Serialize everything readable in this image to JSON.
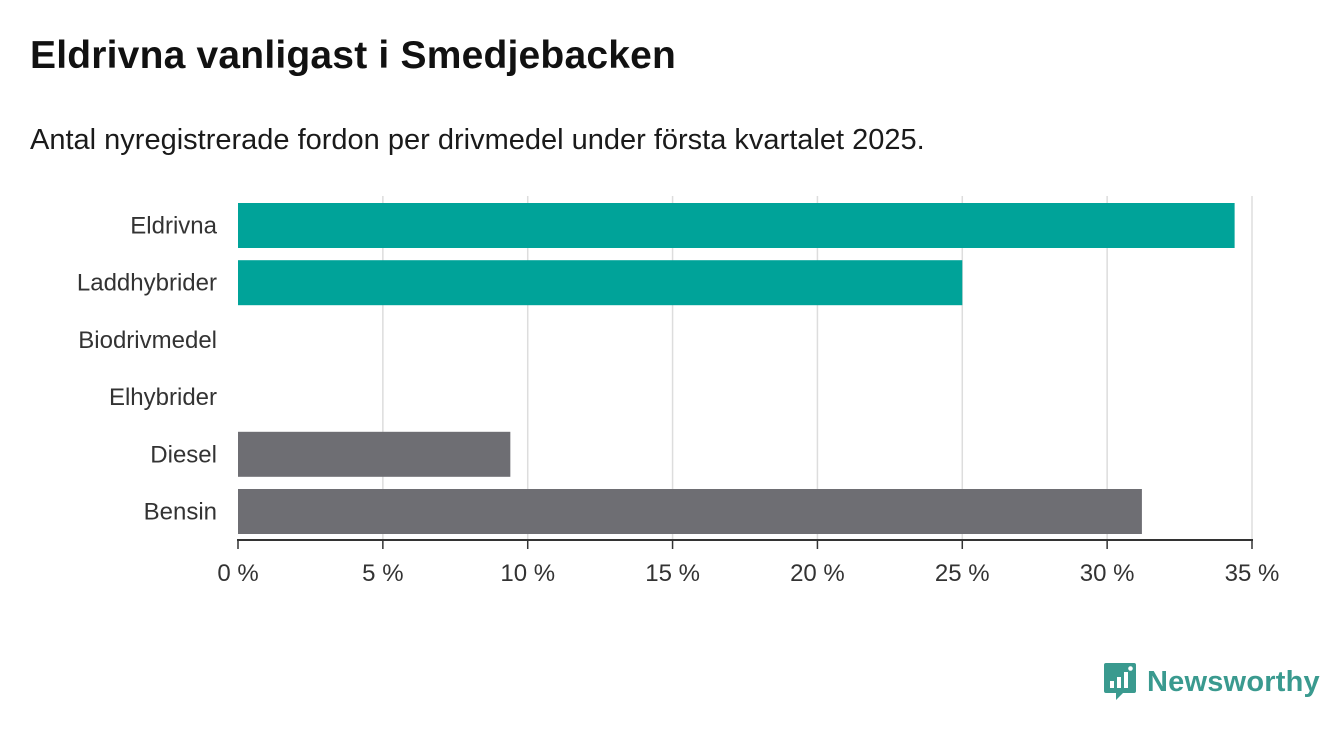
{
  "colors": {
    "accent": "#00a399",
    "neutral": "#6e6e73",
    "brand": "#3a9a8f"
  },
  "chart_data": {
    "type": "bar",
    "orientation": "horizontal",
    "title": "Eldrivna vanligast i Smedjebacken",
    "subtitle": "Antal nyregistrerade fordon per drivmedel under första kvartalet 2025.",
    "categories": [
      "Eldrivna",
      "Laddhybrider",
      "Biodrivmedel",
      "Elhybrider",
      "Diesel",
      "Bensin"
    ],
    "values": [
      34.4,
      25.0,
      0,
      0,
      9.4,
      31.2
    ],
    "bar_colors": [
      "#00a399",
      "#00a399",
      "#00a399",
      "#00a399",
      "#6e6e73",
      "#6e6e73"
    ],
    "xlim": [
      0,
      35
    ],
    "xticks": [
      0,
      5,
      10,
      15,
      20,
      25,
      30,
      35
    ],
    "xtick_labels": [
      "0 %",
      "5 %",
      "10 %",
      "15 %",
      "20 %",
      "25 %",
      "30 %",
      "35 %"
    ],
    "xlabel": "",
    "ylabel": "",
    "grid": true,
    "legend": "none"
  },
  "branding": {
    "name": "Newsworthy",
    "icon": "bar-chart-speech-bubble-icon"
  }
}
